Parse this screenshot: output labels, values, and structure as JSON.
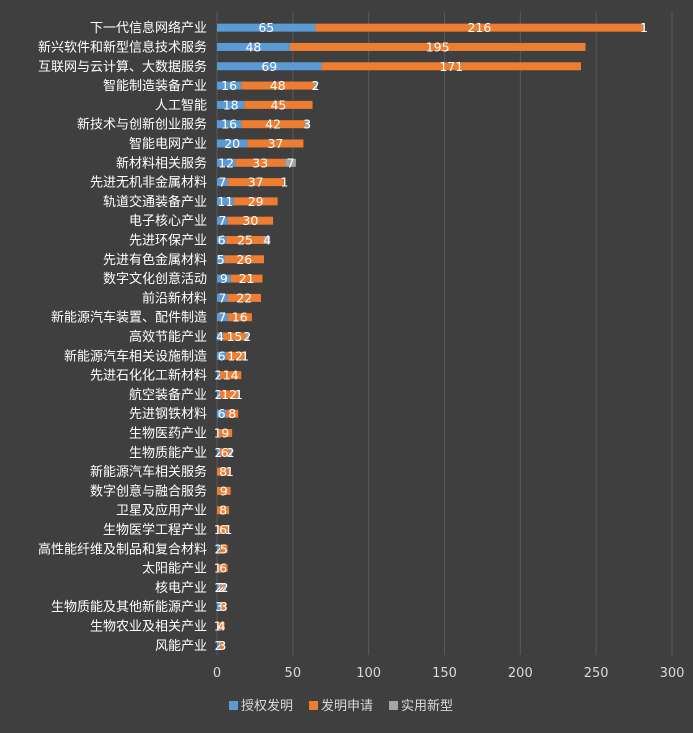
{
  "chart_data": {
    "type": "bar",
    "orientation": "horizontal",
    "stacked": true,
    "categories": [
      "下一代信息网络产业",
      "新兴软件和新型信息技术服务",
      "互联网与云计算、大数据服务",
      "智能制造装备产业",
      "人工智能",
      "新技术与创新创业服务",
      "智能电网产业",
      "新材料相关服务",
      "先进无机非金属材料",
      "轨道交通装备产业",
      "电子核心产业",
      "先进环保产业",
      "先进有色金属材料",
      "数字文化创意活动",
      "前沿新材料",
      "新能源汽车装置、配件制造",
      "高效节能产业",
      "新能源汽车相关设施制造",
      "先进石化化工新材料",
      "航空装备产业",
      "先进钢铁材料",
      "生物医药产业",
      "生物质能产业",
      "新能源汽车相关服务",
      "数字创意与融合服务",
      "卫星及应用产业",
      "生物医学工程产业",
      "高性能纤维及制品和复合材料",
      "太阳能产业",
      "核电产业",
      "生物质能及其他新能源产业",
      "生物农业及相关产业",
      "风能产业"
    ],
    "series": [
      {
        "name": "授权发明",
        "color": "#5b9bd5",
        "values": [
          65,
          48,
          69,
          16,
          18,
          16,
          20,
          12,
          7,
          11,
          7,
          6,
          5,
          9,
          7,
          7,
          4,
          6,
          2,
          2,
          6,
          1,
          2,
          0,
          0,
          0,
          1,
          2,
          1,
          2,
          3,
          1,
          2
        ]
      },
      {
        "name": "发明申请",
        "color": "#ed7d31",
        "values": [
          216,
          195,
          171,
          48,
          45,
          42,
          37,
          33,
          37,
          29,
          30,
          25,
          26,
          21,
          22,
          16,
          15,
          12,
          14,
          12,
          8,
          9,
          6,
          8,
          9,
          8,
          6,
          5,
          6,
          2,
          3,
          4,
          3
        ]
      },
      {
        "name": "实用新型",
        "color": "#a5a5a5",
        "values": [
          1,
          0,
          0,
          2,
          0,
          3,
          0,
          7,
          1,
          0,
          0,
          4,
          0,
          0,
          0,
          0,
          2,
          1,
          0,
          1,
          0,
          0,
          2,
          1,
          0,
          0,
          1,
          0,
          0,
          2,
          0,
          0,
          0
        ]
      }
    ],
    "data_labels": [
      [
        "65",
        "216",
        "1"
      ],
      [
        "48",
        "195",
        ""
      ],
      [
        "69",
        "171",
        ""
      ],
      [
        "16",
        "48",
        "2"
      ],
      [
        "18",
        "45",
        ""
      ],
      [
        "16",
        "42",
        "3"
      ],
      [
        "20",
        "37",
        ""
      ],
      [
        "12",
        "33",
        "7"
      ],
      [
        "7",
        "37",
        "1"
      ],
      [
        "11",
        "29",
        ""
      ],
      [
        "7",
        "30",
        ""
      ],
      [
        "6",
        "25",
        "4"
      ],
      [
        "5",
        "26",
        ""
      ],
      [
        "9",
        "21",
        ""
      ],
      [
        "7",
        "22",
        ""
      ],
      [
        "7",
        "16",
        ""
      ],
      [
        "4",
        "15",
        "2"
      ],
      [
        "6",
        "12",
        "1"
      ],
      [
        "2",
        "14",
        ""
      ],
      [
        "2",
        "12",
        "1"
      ],
      [
        "6",
        "8",
        ""
      ],
      [
        "1",
        "9",
        ""
      ],
      [
        "2",
        "6",
        "2"
      ],
      [
        "",
        "8",
        "1"
      ],
      [
        "",
        "9",
        ""
      ],
      [
        "",
        "8",
        ""
      ],
      [
        "1",
        "6",
        "1"
      ],
      [
        "2",
        "5",
        ""
      ],
      [
        "1",
        "6",
        ""
      ],
      [
        "2",
        "2",
        "2"
      ],
      [
        "3",
        "3",
        ""
      ],
      [
        "1",
        "4",
        ""
      ],
      [
        "2",
        "3",
        ""
      ]
    ],
    "xlim": [
      0,
      300
    ],
    "xticks": [
      "0",
      "50",
      "100",
      "150",
      "200",
      "250",
      "300"
    ],
    "grid": "vertical",
    "legend": "bottom"
  }
}
